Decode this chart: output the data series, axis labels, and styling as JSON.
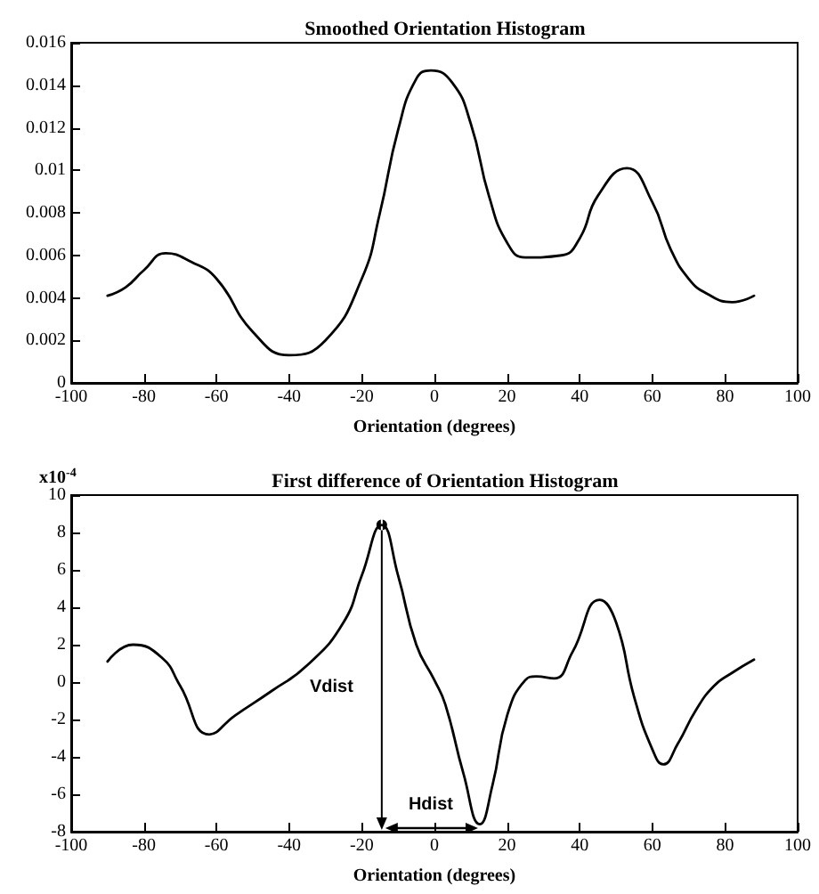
{
  "chart_data": [
    {
      "type": "line",
      "title": "Smoothed Orientation Histogram",
      "xlabel": "Orientation (degrees)",
      "color": "#000000",
      "marker": "none",
      "x": [
        -90,
        -85,
        -80,
        -74,
        -67,
        -60,
        -50,
        -40,
        -30,
        -20,
        -15,
        -10,
        -5,
        -1,
        5,
        10,
        15,
        20,
        25,
        35,
        40,
        45,
        53,
        60,
        65,
        70,
        75,
        82,
        88
      ],
      "values": [
        0.0041,
        0.0045,
        0.0053,
        0.0061,
        0.0057,
        0.0049,
        0.0024,
        0.0013,
        0.002,
        0.0049,
        0.008,
        0.0119,
        0.0143,
        0.0147,
        0.0141,
        0.0122,
        0.0088,
        0.0066,
        0.0059,
        0.006,
        0.0068,
        0.0088,
        0.0101,
        0.0085,
        0.0063,
        0.0049,
        0.0042,
        0.0038,
        0.0041
      ],
      "xlim": [
        -100,
        100
      ],
      "xticks": [
        -100,
        -80,
        -60,
        -40,
        -20,
        0,
        20,
        40,
        60,
        80,
        100
      ],
      "ylim": [
        0,
        0.016
      ],
      "yticks": [
        0,
        0.002,
        0.004,
        0.006,
        0.008,
        0.01,
        0.012,
        0.014,
        0.016
      ]
    },
    {
      "type": "line",
      "title": "First difference of Orientation Histogram",
      "xlabel": "Orientation (degrees)",
      "color": "#000000",
      "marker": "none",
      "annotations": [
        "x10$^{-4}$",
        "Vdist",
        "Hdist"
      ],
      "x": [
        -90,
        -83,
        -75,
        -70,
        -62,
        -55,
        -45,
        -35,
        -25,
        -20,
        -14.5,
        -10,
        -5,
        0,
        3,
        8,
        12.5,
        16,
        20,
        25,
        28,
        33,
        38,
        45.5,
        50,
        55,
        60,
        63,
        67,
        72,
        77,
        82,
        88
      ],
      "values": [
        1.1,
        2,
        1.3,
        -0.2,
        -2.8,
        -1.8,
        -0.5,
        0.9,
        3.2,
        5.7,
        8.4,
        5.7,
        2,
        0.1,
        -1.2,
        -4.9,
        -7.6,
        -5.5,
        -1.8,
        0.1,
        0.3,
        0.2,
        1.6,
        4.4,
        3.2,
        -0.8,
        -3.6,
        -4.4,
        -3.3,
        -1.5,
        -0.2,
        0.5,
        1.2
      ],
      "xlim": [
        -100,
        100
      ],
      "xticks": [
        -100,
        -80,
        -60,
        -40,
        -20,
        0,
        20,
        40,
        60,
        80,
        100
      ],
      "ylim": [
        -8,
        10
      ],
      "yticks": [
        -8,
        -6,
        -4,
        -2,
        0,
        2,
        4,
        6,
        8,
        10
      ]
    }
  ]
}
